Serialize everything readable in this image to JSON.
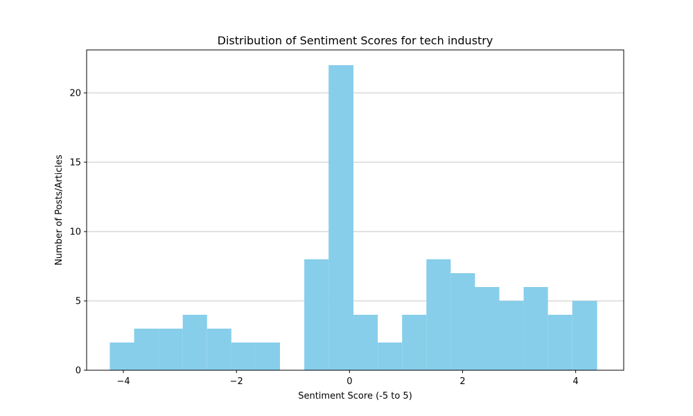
{
  "chart_data": {
    "type": "bar",
    "title": "Distribution of Sentiment Scores for tech industry",
    "xlabel": "Sentiment Score (-5 to 5)",
    "ylabel": "Number of Posts/Articles",
    "xlim": [
      -4.65,
      4.85
    ],
    "ylim": [
      0,
      23.1
    ],
    "grid": {
      "y": true,
      "x": false
    },
    "bar_color": "#87ceeb",
    "grid_color": "#b0b0b0",
    "bins": [
      {
        "start": -4.24,
        "end": -3.81,
        "value": 2
      },
      {
        "start": -3.81,
        "end": -3.38,
        "value": 3
      },
      {
        "start": -3.38,
        "end": -2.95,
        "value": 3
      },
      {
        "start": -2.95,
        "end": -2.52,
        "value": 4
      },
      {
        "start": -2.52,
        "end": -2.09,
        "value": 3
      },
      {
        "start": -2.09,
        "end": -1.66,
        "value": 2
      },
      {
        "start": -1.66,
        "end": -1.23,
        "value": 2
      },
      {
        "start": -1.23,
        "end": -0.8,
        "value": 0
      },
      {
        "start": -0.8,
        "end": -0.37,
        "value": 8
      },
      {
        "start": -0.37,
        "end": 0.07,
        "value": 22
      },
      {
        "start": 0.07,
        "end": 0.5,
        "value": 4
      },
      {
        "start": 0.5,
        "end": 0.93,
        "value": 2
      },
      {
        "start": 0.93,
        "end": 1.36,
        "value": 4
      },
      {
        "start": 1.36,
        "end": 1.79,
        "value": 8
      },
      {
        "start": 1.79,
        "end": 2.22,
        "value": 7
      },
      {
        "start": 2.22,
        "end": 2.65,
        "value": 6
      },
      {
        "start": 2.65,
        "end": 3.08,
        "value": 5
      },
      {
        "start": 3.08,
        "end": 3.51,
        "value": 6
      },
      {
        "start": 3.51,
        "end": 3.94,
        "value": 4
      },
      {
        "start": 3.94,
        "end": 4.38,
        "value": 5
      }
    ],
    "x_ticks": [
      {
        "value": -4,
        "label": "−4"
      },
      {
        "value": -2,
        "label": "−2"
      },
      {
        "value": 0,
        "label": "0"
      },
      {
        "value": 2,
        "label": "2"
      },
      {
        "value": 4,
        "label": "4"
      }
    ],
    "y_ticks": [
      {
        "value": 0,
        "label": "0"
      },
      {
        "value": 5,
        "label": "5"
      },
      {
        "value": 10,
        "label": "10"
      },
      {
        "value": 15,
        "label": "15"
      },
      {
        "value": 20,
        "label": "20"
      }
    ]
  }
}
